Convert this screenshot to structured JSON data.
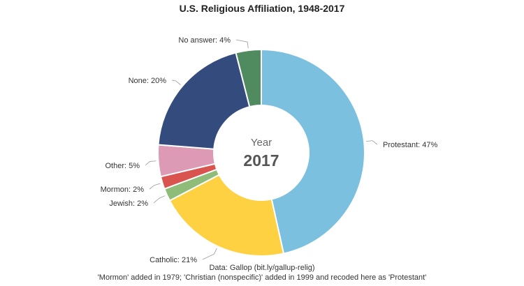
{
  "chart_data": {
    "type": "pie",
    "title": "U.S. Religious Affiliation, 1948-2017",
    "center_caption": "Year",
    "center_value": "2017",
    "slices": [
      {
        "label": "Protestant",
        "value": 47,
        "label_text": "Protestant: 47%",
        "color": "#7cc0e0"
      },
      {
        "label": "Catholic",
        "value": 21,
        "label_text": "Catholic: 21%",
        "color": "#fdd142"
      },
      {
        "label": "Jewish",
        "value": 2,
        "label_text": "Jewish: 2%",
        "color": "#8fbc78"
      },
      {
        "label": "Mormon",
        "value": 2,
        "label_text": "Mormon: 2%",
        "color": "#d9534f"
      },
      {
        "label": "Other",
        "value": 5,
        "label_text": "Other: 5%",
        "color": "#dc9ab5"
      },
      {
        "label": "None",
        "value": 20,
        "label_text": "None: 20%",
        "color": "#344b7d"
      },
      {
        "label": "No answer",
        "value": 4,
        "label_text": "No answer: 4%",
        "color": "#4f8b5e"
      }
    ],
    "source": "Data: Gallop (bit.ly/gallup-relig)",
    "footnote": "'Mormon' added in 1979; 'Christian (nonspecific)' added in 1999 and recoded here as 'Protestant'"
  }
}
